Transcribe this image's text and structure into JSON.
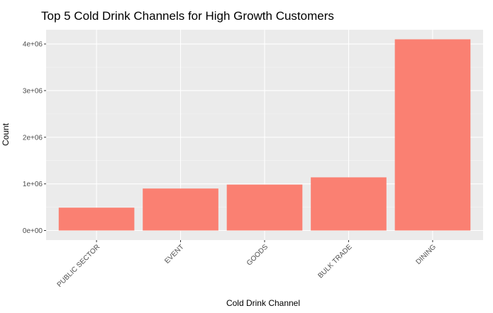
{
  "chart_data": {
    "type": "bar",
    "title": "Top 5 Cold Drink Channels for High Growth Customers",
    "xlabel": "Cold Drink Channel",
    "ylabel": "Count",
    "categories": [
      "PUBLIC SECTOR",
      "EVENT",
      "GOODS",
      "BULK TRADE",
      "DINING"
    ],
    "values": [
      490000,
      900000,
      985000,
      1140000,
      4100000
    ],
    "yticks": [
      0,
      1000000,
      2000000,
      3000000,
      4000000
    ],
    "ytick_labels": [
      "0e+00",
      "1e+06",
      "2e+06",
      "3e+06",
      "4e+06"
    ],
    "ylim": [
      -205000,
      4305000
    ],
    "bar_color": "#FA8072",
    "panel_color": "#EBEBEB",
    "grid": true
  }
}
